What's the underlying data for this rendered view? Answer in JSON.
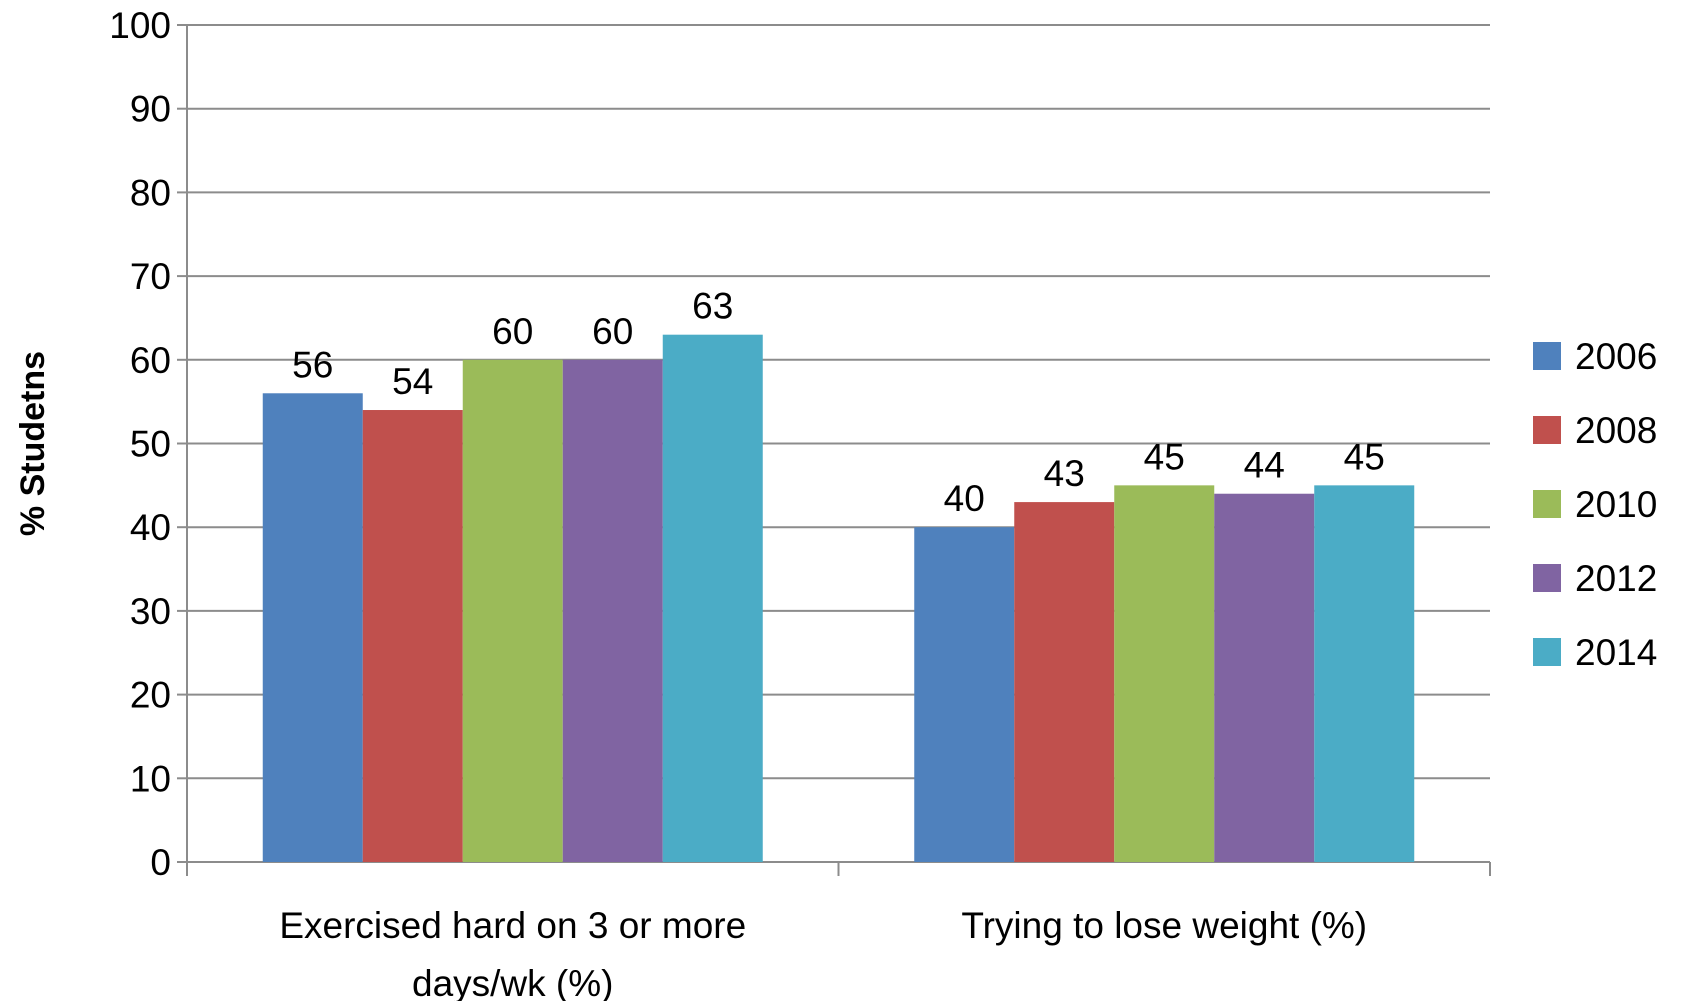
{
  "chart_data": {
    "type": "bar",
    "title": "",
    "xlabel": "",
    "ylabel": "% Studetns",
    "ylim": [
      0,
      100
    ],
    "yticks": [
      0,
      10,
      20,
      30,
      40,
      50,
      60,
      70,
      80,
      90,
      100
    ],
    "grid": true,
    "legend_position": "right",
    "categories": [
      [
        "Exercised hard on 3 or more",
        "days/wk (%)"
      ],
      [
        "Trying to  lose weight (%)"
      ]
    ],
    "series": [
      {
        "name": "2006",
        "color": "#4F81BD",
        "values": [
          56,
          40
        ]
      },
      {
        "name": "2008",
        "color": "#C0504D",
        "values": [
          54,
          43
        ]
      },
      {
        "name": "2010",
        "color": "#9BBB59",
        "values": [
          60,
          45
        ]
      },
      {
        "name": "2012",
        "color": "#8064A2",
        "values": [
          60,
          44
        ]
      },
      {
        "name": "2014",
        "color": "#4BACC6",
        "values": [
          63,
          45
        ]
      }
    ],
    "data_labels": true
  }
}
